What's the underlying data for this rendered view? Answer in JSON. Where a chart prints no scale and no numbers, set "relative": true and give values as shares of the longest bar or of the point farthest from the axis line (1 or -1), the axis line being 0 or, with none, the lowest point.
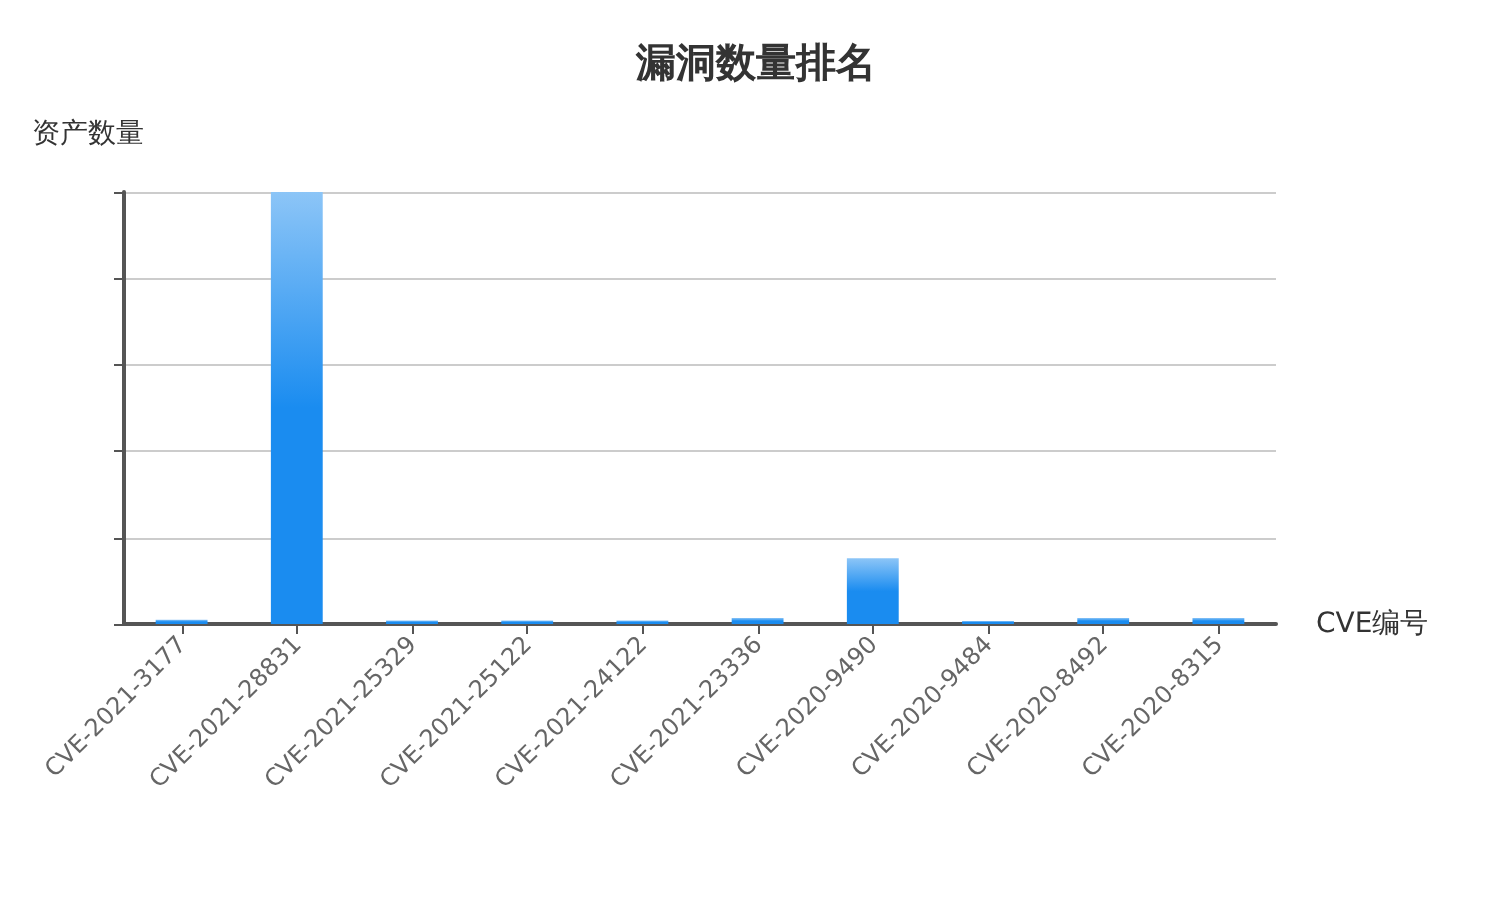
{
  "chart_data": {
    "type": "bar",
    "title": "漏洞数量排名",
    "xlabel": "CVE编号",
    "ylabel": "资产数量",
    "relative": true,
    "grid": "y",
    "categories": [
      "CVE-2021-3177",
      "CVE-2021-28831",
      "CVE-2021-25329",
      "CVE-2021-25122",
      "CVE-2021-24122",
      "CVE-2021-23336",
      "CVE-2020-9490",
      "CVE-2020-9484",
      "CVE-2020-8492",
      "CVE-2020-8315"
    ],
    "series": [
      {
        "color": "#1a8cf0",
        "values": [
          0.01,
          1,
          0.008,
          0.008,
          0.008,
          0.014,
          0.152,
          0.007,
          0.014,
          0.014
        ]
      }
    ]
  }
}
